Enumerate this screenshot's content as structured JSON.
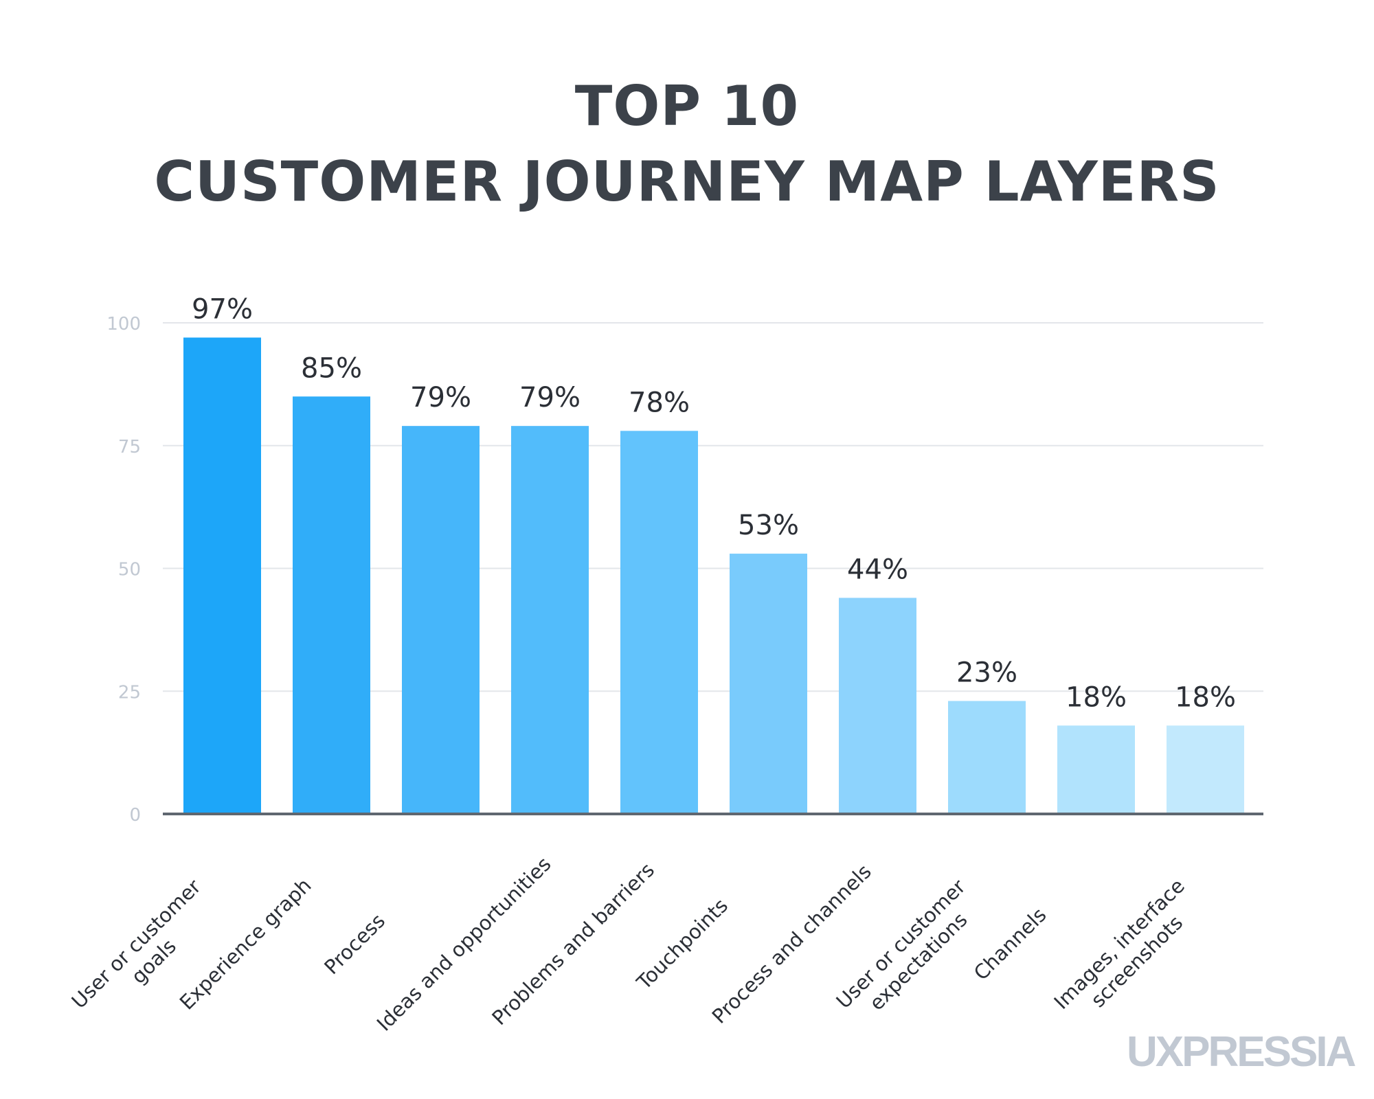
{
  "title_lines": [
    "TOP 10",
    "CUSTOMER JOURNEY MAP LAYERS"
  ],
  "watermark": "UXPRESSIA",
  "chart_data": {
    "type": "bar",
    "title": "TOP 10 CUSTOMER JOURNEY MAP LAYERS",
    "categories": [
      [
        "User or customer",
        "goals"
      ],
      [
        "Experience graph"
      ],
      [
        "Process"
      ],
      [
        "Ideas and opportunities"
      ],
      [
        "Problems and barriers"
      ],
      [
        "Touchpoints"
      ],
      [
        "Process and channels"
      ],
      [
        "User or customer",
        "expectations"
      ],
      [
        "Channels"
      ],
      [
        "Images, interface",
        "screenshots"
      ]
    ],
    "values": [
      97,
      85,
      79,
      79,
      78,
      53,
      44,
      23,
      18,
      18
    ],
    "data_labels": [
      "97%",
      "85%",
      "79%",
      "79%",
      "78%",
      "53%",
      "44%",
      "23%",
      "18%",
      "18%"
    ],
    "ylim": [
      0,
      100
    ],
    "yticks": [
      0,
      25,
      50,
      75,
      100
    ],
    "grid": true,
    "colors": [
      "#1da6f9",
      "#30adf9",
      "#46b6fa",
      "#52bcfb",
      "#62c3fc",
      "#79cbfc",
      "#8dd3fd",
      "#9ddbfd",
      "#b1e3fd",
      "#c2e9fd"
    ],
    "grid_color": "#e3e6ea",
    "axis_color": "#5f6770",
    "tick_label_color": "#c1c8d2"
  }
}
